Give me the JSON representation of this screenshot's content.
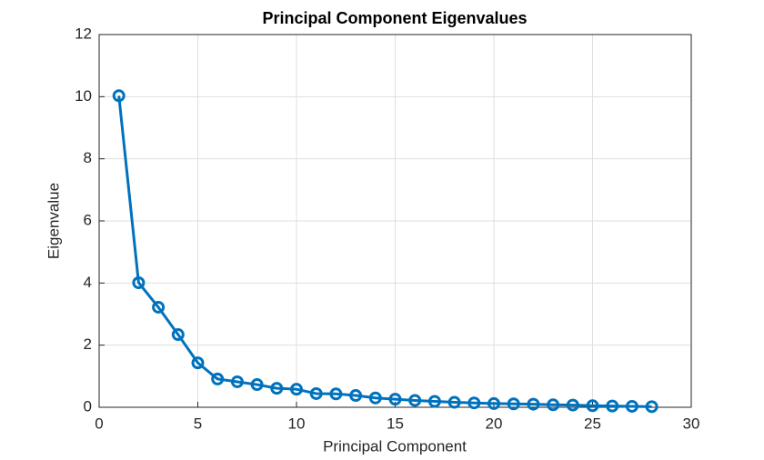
{
  "chart_data": {
    "type": "line",
    "title": "Principal Component Eigenvalues",
    "xlabel": "Principal Component",
    "ylabel": "Eigenvalue",
    "x": [
      1,
      2,
      3,
      4,
      5,
      6,
      7,
      8,
      9,
      10,
      11,
      12,
      13,
      14,
      15,
      16,
      17,
      18,
      19,
      20,
      21,
      22,
      23,
      24,
      25,
      26,
      27,
      28
    ],
    "series": [
      {
        "color": "#0072bd",
        "values": [
          10.03,
          4.01,
          3.22,
          2.34,
          1.43,
          0.91,
          0.82,
          0.73,
          0.61,
          0.58,
          0.44,
          0.43,
          0.38,
          0.3,
          0.26,
          0.22,
          0.19,
          0.16,
          0.14,
          0.12,
          0.11,
          0.1,
          0.08,
          0.07,
          0.05,
          0.04,
          0.03,
          0.02
        ]
      }
    ],
    "xlim": [
      0,
      30
    ],
    "xticks": [
      0,
      5,
      10,
      15,
      20,
      25,
      30
    ],
    "ylim": [
      0,
      12
    ],
    "yticks": [
      0,
      2,
      4,
      6,
      8,
      10,
      12
    ],
    "grid": true
  }
}
